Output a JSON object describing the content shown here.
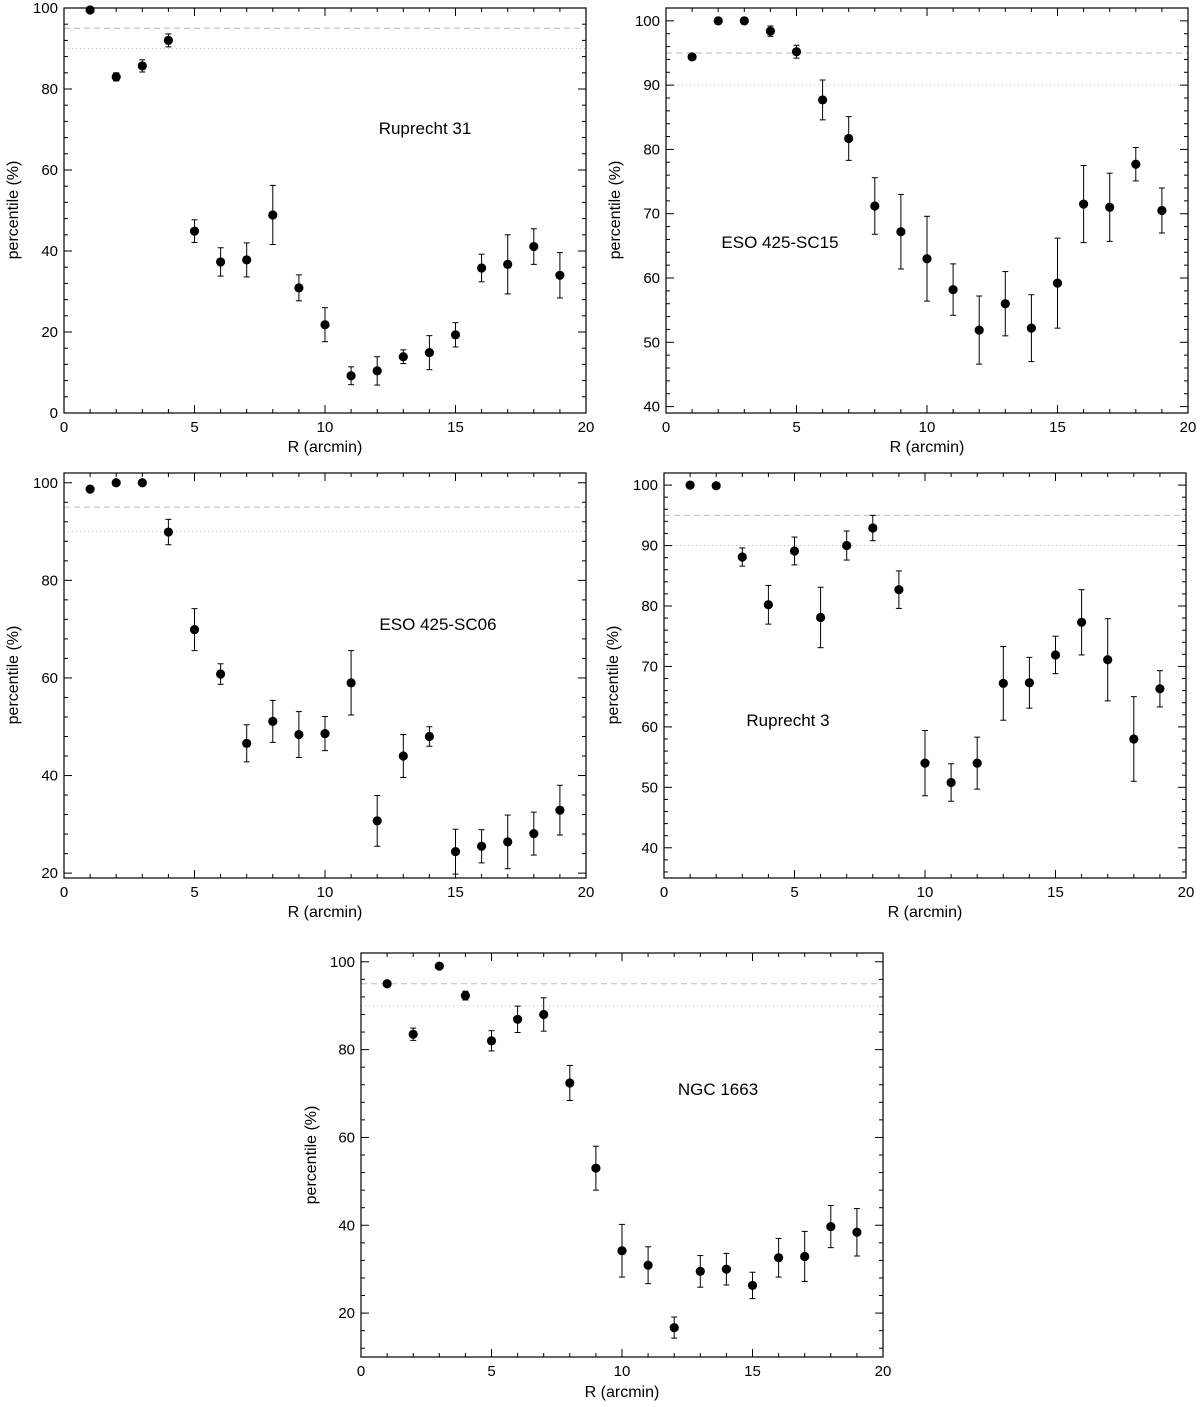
{
  "colors": {
    "foreground": "#000000",
    "background": "#ffffff",
    "reference_line": "#bbbbbb"
  },
  "chart_data": [
    {
      "type": "scatter",
      "title": "Ruprecht 31",
      "title_position": "upper-center",
      "xlabel": "R (arcmin)",
      "ylabel": "percentile (%)",
      "xlim": [
        0,
        20
      ],
      "ylim": [
        0,
        100
      ],
      "xticks": [
        0,
        5,
        10,
        15,
        20
      ],
      "yticks": [
        0,
        20,
        40,
        60,
        80,
        100
      ],
      "reference_lines": [
        {
          "y": 95,
          "style": "dashed"
        },
        {
          "y": 90,
          "style": "dotted"
        }
      ],
      "x": [
        1,
        2,
        3,
        4,
        5,
        6,
        7,
        8,
        9,
        10,
        11,
        12,
        13,
        14,
        15,
        16,
        17,
        18,
        19
      ],
      "y": [
        99.5,
        83,
        85.7,
        92,
        44.9,
        37.3,
        37.8,
        48.9,
        30.9,
        21.8,
        9.2,
        10.4,
        13.9,
        14.9,
        19.3,
        35.8,
        36.7,
        41.1,
        34
      ],
      "yerr": [
        0.4,
        1.0,
        1.5,
        1.6,
        2.8,
        3.5,
        4.2,
        7.3,
        3.2,
        4.2,
        2.2,
        3.5,
        1.7,
        4.2,
        3.0,
        3.4,
        7.3,
        4.4,
        5.6
      ]
    },
    {
      "type": "scatter",
      "title": "ESO 425-SC15",
      "title_position": "left-center",
      "xlabel": "R (arcmin)",
      "ylabel": "percentile (%)",
      "xlim": [
        0,
        20
      ],
      "ylim": [
        39,
        102
      ],
      "xticks": [
        0,
        5,
        10,
        15,
        20
      ],
      "yticks": [
        40,
        50,
        60,
        70,
        80,
        90,
        100
      ],
      "reference_lines": [
        {
          "y": 95,
          "style": "dashed"
        },
        {
          "y": 90,
          "style": "dotted"
        }
      ],
      "x": [
        1,
        2,
        3,
        4,
        5,
        6,
        7,
        8,
        9,
        10,
        11,
        12,
        13,
        14,
        15,
        16,
        17,
        18,
        19
      ],
      "y": [
        94.4,
        100,
        100,
        98.4,
        95.2,
        87.7,
        81.7,
        71.2,
        67.2,
        63,
        58.2,
        51.9,
        56,
        52.2,
        59.2,
        71.5,
        71,
        77.7,
        70.5
      ],
      "yerr": [
        0,
        0,
        0,
        0.8,
        1.0,
        3.1,
        3.4,
        4.4,
        5.8,
        6.6,
        4.0,
        5.3,
        5.0,
        5.2,
        7.0,
        6.0,
        5.3,
        2.6,
        3.5
      ]
    },
    {
      "type": "scatter",
      "title": "ESO 425-SC06",
      "title_position": "upper-right",
      "xlabel": "R (arcmin)",
      "ylabel": "percentile (%)",
      "xlim": [
        0,
        20
      ],
      "ylim": [
        19,
        102
      ],
      "xticks": [
        0,
        5,
        10,
        15,
        20
      ],
      "yticks": [
        20,
        40,
        60,
        80,
        100
      ],
      "reference_lines": [
        {
          "y": 95,
          "style": "dashed"
        },
        {
          "y": 90,
          "style": "dotted"
        }
      ],
      "x": [
        1,
        2,
        3,
        4,
        5,
        6,
        7,
        8,
        9,
        10,
        11,
        12,
        13,
        14,
        15,
        16,
        17,
        18,
        19
      ],
      "y": [
        98.7,
        100,
        100,
        89.9,
        69.9,
        60.8,
        46.6,
        51.1,
        48.4,
        48.6,
        59,
        30.7,
        44,
        48,
        24.4,
        25.5,
        26.4,
        28.1,
        32.9
      ],
      "yerr": [
        0,
        0,
        0,
        2.6,
        4.3,
        2.1,
        3.8,
        4.3,
        4.7,
        3.5,
        6.6,
        5.2,
        4.4,
        2.0,
        4.6,
        3.4,
        5.5,
        4.4,
        5.1
      ]
    },
    {
      "type": "scatter",
      "title": "Ruprecht 3",
      "title_position": "lower-left",
      "xlabel": "R (arcmin)",
      "ylabel": "percentile (%)",
      "xlim": [
        0,
        20
      ],
      "ylim": [
        35,
        102
      ],
      "xticks": [
        0,
        5,
        10,
        15,
        20
      ],
      "yticks": [
        40,
        50,
        60,
        70,
        80,
        90,
        100
      ],
      "reference_lines": [
        {
          "y": 95,
          "style": "dashed"
        },
        {
          "y": 90,
          "style": "dotted"
        }
      ],
      "x": [
        1,
        2,
        3,
        4,
        5,
        6,
        7,
        8,
        9,
        10,
        11,
        12,
        13,
        14,
        15,
        16,
        17,
        18,
        19
      ],
      "y": [
        100,
        99.9,
        88.1,
        80.2,
        89.1,
        78.1,
        90,
        92.9,
        82.7,
        54,
        50.8,
        54,
        67.2,
        67.3,
        71.9,
        77.3,
        71.1,
        58,
        66.3
      ],
      "yerr": [
        0,
        0,
        1.5,
        3.2,
        2.3,
        5.0,
        2.4,
        2.1,
        3.1,
        5.4,
        3.1,
        4.3,
        6.1,
        4.2,
        3.1,
        5.4,
        6.8,
        7.0,
        3.0
      ]
    },
    {
      "type": "scatter",
      "title": "NGC 1663",
      "title_position": "upper-right",
      "xlabel": "R (arcmin)",
      "ylabel": "percentile (%)",
      "xlim": [
        0,
        20
      ],
      "ylim": [
        10,
        102
      ],
      "xticks": [
        0,
        5,
        10,
        15,
        20
      ],
      "yticks": [
        20,
        40,
        60,
        80,
        100
      ],
      "reference_lines": [
        {
          "y": 95,
          "style": "dashed"
        },
        {
          "y": 90,
          "style": "dotted"
        }
      ],
      "x": [
        1,
        2,
        3,
        4,
        5,
        6,
        7,
        8,
        9,
        10,
        11,
        12,
        13,
        14,
        15,
        16,
        17,
        18,
        19
      ],
      "y": [
        95,
        83.5,
        99,
        92.3,
        82,
        86.9,
        88,
        72.4,
        53,
        34.2,
        30.9,
        16.7,
        29.5,
        30,
        26.3,
        32.6,
        32.9,
        39.7,
        38.4
      ],
      "yerr": [
        0,
        1.4,
        0,
        1.0,
        2.3,
        3.0,
        3.8,
        4.0,
        5.0,
        6.0,
        4.2,
        2.4,
        3.6,
        3.6,
        3.0,
        4.4,
        5.7,
        4.8,
        5.4
      ]
    }
  ]
}
